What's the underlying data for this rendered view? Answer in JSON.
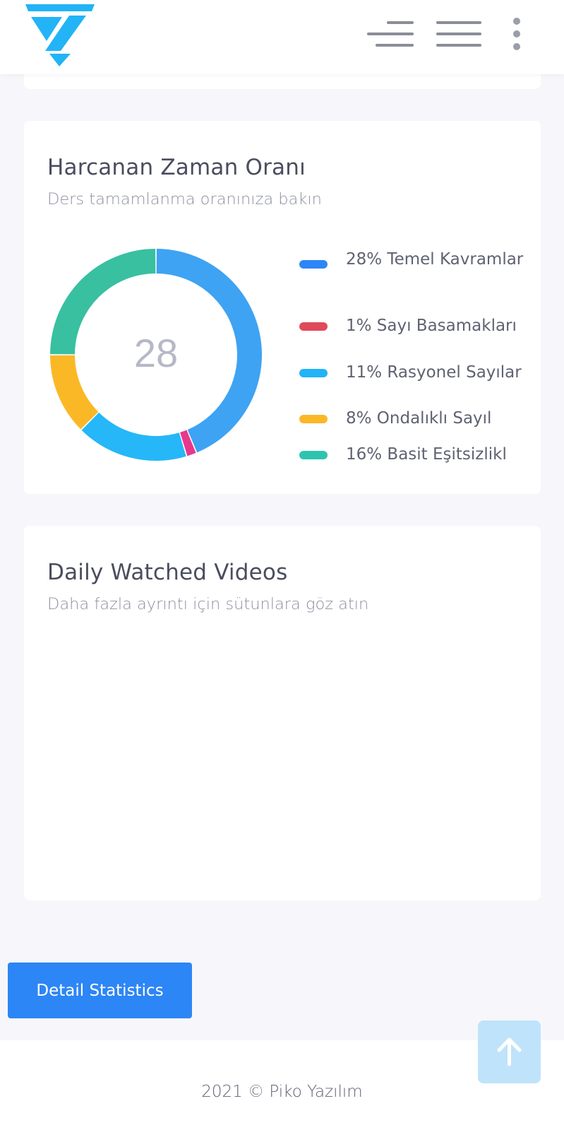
{
  "header": {
    "logo_icon": "brand-triangle-logo-icon",
    "collapse_icon": "menu-collapse-icon",
    "menu_icon": "hamburger-menu-icon",
    "more_icon": "more-vertical-icon"
  },
  "donut_card": {
    "title": "Harcanan Zaman Oranı",
    "subtitle": "Ders tamamlanma oranınıza bakın",
    "center_value": "28"
  },
  "chart_data": {
    "type": "pie",
    "title": "Harcanan Zaman Oranı",
    "center_label": "28",
    "categories": [
      "28% Temel Kavramlar",
      "1% Sayı Basamakları",
      "11% Rasyonel Sayılar",
      "8% Ondalıklı Sayıl",
      "16% Basit Eşitsizlikl"
    ],
    "values": [
      28,
      1,
      11,
      8,
      16
    ],
    "slice_colors": [
      "#3ea3f2",
      "#e8388d",
      "#25b7f7",
      "#fbb826",
      "#38c0a0"
    ],
    "legend_colors": [
      "#2d86f5",
      "#e04a5a",
      "#22b4f6",
      "#fbb826",
      "#2dc5b0"
    ],
    "legend_position": "right"
  },
  "video_card": {
    "title": "Daily Watched Videos",
    "subtitle": "Daha fazla ayrıntı için sütunlara göz atın"
  },
  "actions": {
    "detail_label": "Detail Statistics",
    "scroll_top_icon": "arrow-up-icon"
  },
  "footer": {
    "text": "2021 © Piko Yazılım"
  },
  "colors": {
    "primary": "#2d86f5",
    "logo": "#22b4f6",
    "background": "#f7f7fb"
  }
}
